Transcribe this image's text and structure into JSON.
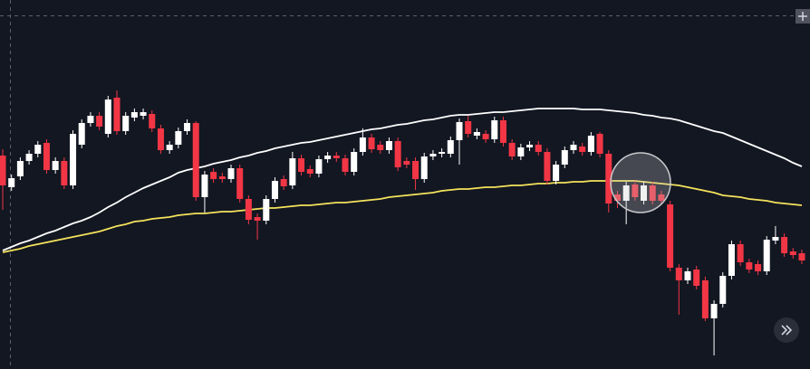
{
  "chart_data": {
    "type": "candlestick",
    "ylim": [
      0,
      408
    ],
    "up_color": "#ffffff",
    "down_color": "#f23645",
    "open": [
      236,
      201,
      213,
      230,
      238,
      250,
      220,
      230,
      203,
      248,
      272,
      280,
      260,
      300,
      263,
      278,
      280,
      282,
      266,
      242,
      248,
      263,
      272,
      190,
      218,
      213,
      210,
      222,
      188,
      168,
      164,
      188,
      210,
      203,
      233,
      221,
      216,
      232,
      236,
      233,
      218,
      240,
      256,
      248,
      242,
      252,
      230,
      230,
      210,
      235,
      238,
      238,
      253,
      274,
      258,
      260,
      254,
      275,
      250,
      235,
      245,
      248,
      240,
      208,
      226,
      242,
      246,
      240,
      260,
      238,
      193,
      186,
      204,
      186,
      203,
      193,
      182,
      112,
      98,
      110,
      98,
      56,
      72,
      103,
      138,
      118,
      116,
      108,
      142,
      146,
      130,
      128
    ],
    "high": [
      243,
      215,
      234,
      242,
      252,
      254,
      234,
      234,
      264,
      276,
      284,
      284,
      302,
      308,
      284,
      288,
      288,
      286,
      270,
      252,
      267,
      276,
      274,
      219,
      222,
      217,
      226,
      226,
      192,
      172,
      192,
      212,
      214,
      240,
      237,
      225,
      236,
      240,
      240,
      237,
      244,
      266,
      260,
      252,
      256,
      256,
      234,
      234,
      239,
      242,
      244,
      257,
      277,
      280,
      266,
      264,
      279,
      279,
      254,
      249,
      252,
      252,
      244,
      230,
      246,
      252,
      250,
      262,
      262,
      242,
      197,
      207,
      208,
      207,
      207,
      197,
      186,
      116,
      112,
      114,
      102,
      76,
      107,
      142,
      142,
      122,
      120,
      147,
      158,
      150,
      134,
      132
    ],
    "low": [
      176,
      197,
      209,
      226,
      234,
      216,
      216,
      199,
      199,
      244,
      268,
      264,
      256,
      259,
      259,
      274,
      276,
      262,
      238,
      238,
      244,
      259,
      186,
      173,
      206,
      206,
      206,
      184,
      160,
      143,
      160,
      184,
      198,
      199,
      214,
      212,
      212,
      228,
      229,
      214,
      214,
      236,
      239,
      238,
      238,
      219,
      222,
      198,
      206,
      231,
      234,
      234,
      226,
      256,
      254,
      250,
      250,
      246,
      231,
      231,
      241,
      236,
      204,
      204,
      222,
      238,
      236,
      236,
      234,
      173,
      178,
      160,
      186,
      182,
      182,
      182,
      108,
      60,
      94,
      88,
      53,
      15,
      68,
      99,
      114,
      106,
      104,
      104,
      138,
      124,
      122,
      116
    ],
    "close": [
      203,
      211,
      230,
      238,
      248,
      220,
      230,
      203,
      260,
      272,
      280,
      268,
      298,
      263,
      280,
      284,
      284,
      266,
      242,
      248,
      263,
      272,
      190,
      215,
      210,
      210,
      222,
      188,
      165,
      164,
      188,
      208,
      202,
      233,
      218,
      216,
      232,
      236,
      233,
      218,
      240,
      256,
      243,
      242,
      252,
      223,
      226,
      210,
      235,
      238,
      240,
      253,
      273,
      260,
      262,
      254,
      275,
      250,
      235,
      245,
      248,
      240,
      208,
      226,
      242,
      248,
      240,
      258,
      238,
      183,
      186,
      203,
      190,
      203,
      186,
      186,
      112,
      98,
      108,
      92,
      56,
      72,
      103,
      138,
      118,
      110,
      108,
      143,
      146,
      128,
      126,
      120
    ],
    "series": [
      {
        "color": "#ffffff",
        "values": [
          131,
          135,
          139,
          142,
          146,
          150,
          153,
          157,
          161,
          164,
          168,
          173,
          179,
          184,
          190,
          195,
          200,
          204,
          208,
          212,
          217,
          220,
          222,
          224,
          227,
          229,
          231,
          234,
          236,
          239,
          241,
          244,
          246,
          248,
          250,
          251,
          253,
          255,
          257,
          259,
          261,
          263,
          265,
          266,
          268,
          270,
          271,
          273,
          275,
          276,
          278,
          280,
          281,
          281,
          282,
          283,
          284,
          284,
          285,
          286,
          287,
          288,
          288,
          288,
          288,
          288,
          287,
          287,
          287,
          286,
          285,
          284,
          283,
          281,
          280,
          278,
          277,
          275,
          272,
          269,
          266,
          263,
          261,
          257,
          253,
          249,
          245,
          241,
          237,
          233,
          228,
          224
        ]
      },
      {
        "color": "#f5e35c",
        "values": [
          129,
          131,
          133,
          136,
          138,
          140,
          142,
          144,
          146,
          148,
          150,
          152,
          155,
          158,
          160,
          163,
          164,
          166,
          167,
          168,
          170,
          171,
          172,
          172,
          173,
          174,
          174,
          175,
          176,
          177,
          178,
          178,
          179,
          180,
          181,
          181,
          182,
          183,
          184,
          184,
          185,
          186,
          187,
          188,
          190,
          191,
          192,
          193,
          194,
          195,
          197,
          198,
          199,
          199,
          200,
          201,
          201,
          202,
          203,
          203,
          204,
          205,
          205,
          206,
          206,
          207,
          207,
          208,
          208,
          208,
          208,
          208,
          208,
          207,
          206,
          205,
          204,
          203,
          201,
          199,
          197,
          195,
          192,
          191,
          190,
          188,
          187,
          186,
          184,
          183,
          182,
          181
        ]
      }
    ]
  }
}
